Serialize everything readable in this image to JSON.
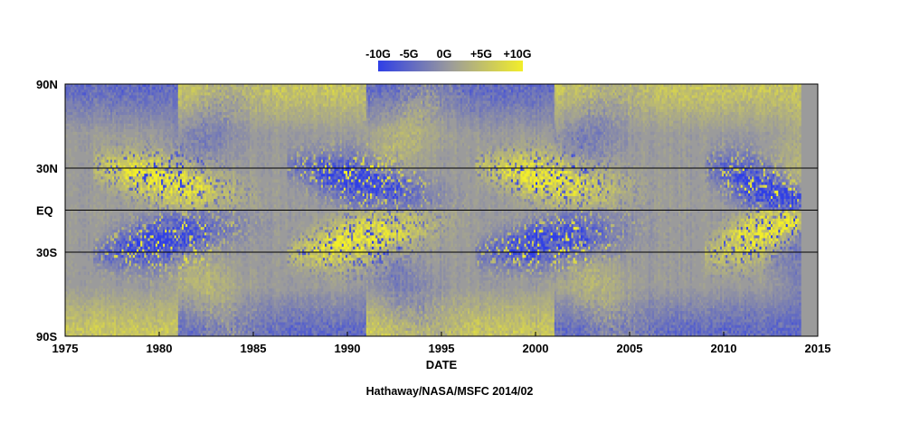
{
  "chart_data": {
    "type": "heatmap",
    "title": "",
    "xlabel": "DATE",
    "ylabel": "",
    "xlim": [
      1975,
      2015
    ],
    "ylim": [
      -90,
      90
    ],
    "x_ticks": [
      {
        "value": 1975,
        "label": "1975"
      },
      {
        "value": 1980,
        "label": "1980"
      },
      {
        "value": 1985,
        "label": "1985"
      },
      {
        "value": 1990,
        "label": "1990"
      },
      {
        "value": 1995,
        "label": "1995"
      },
      {
        "value": 2000,
        "label": "2000"
      },
      {
        "value": 2005,
        "label": "2005"
      },
      {
        "value": 2010,
        "label": "2010"
      },
      {
        "value": 2015,
        "label": "2015"
      }
    ],
    "y_ticks": [
      {
        "value": 90,
        "label": "90N"
      },
      {
        "value": 30,
        "label": "30N"
      },
      {
        "value": 0,
        "label": "EQ"
      },
      {
        "value": -30,
        "label": "30S"
      },
      {
        "value": -90,
        "label": "90S"
      }
    ],
    "colorbar": {
      "labels": [
        "-10G",
        "-5G",
        "0G",
        "+5G",
        "+10G"
      ],
      "range": [
        -10,
        10
      ],
      "colors": {
        "negative": "#2f3fe6",
        "zero": "#9b9b9b",
        "positive": "#f2ee2a"
      }
    },
    "data_end": 2014.1,
    "credit": "Hathaway/NASA/MSFC 2014/02",
    "cycles": [
      {
        "start": 1976.5,
        "max": 1980.0,
        "end": 1986.5,
        "north_sign": 1,
        "south_sign": -1
      },
      {
        "start": 1986.8,
        "max": 1990.5,
        "end": 1996.5,
        "north_sign": -1,
        "south_sign": 1
      },
      {
        "start": 1996.8,
        "max": 2000.5,
        "end": 2008.8,
        "north_sign": 1,
        "south_sign": -1
      },
      {
        "start": 2009.0,
        "max": 2012.5,
        "end": 2014.1,
        "north_sign": -1,
        "south_sign": 1
      }
    ],
    "polar_field": [
      {
        "start": 1975,
        "end": 1981,
        "north": -5,
        "south": 5
      },
      {
        "start": 1981,
        "end": 1991,
        "north": 5,
        "south": -5
      },
      {
        "start": 1991,
        "end": 2001,
        "north": -5,
        "south": 5
      },
      {
        "start": 2001,
        "end": 2014.1,
        "north": 5,
        "south": -5
      }
    ],
    "grid_lines": [
      30,
      0,
      -30
    ]
  }
}
